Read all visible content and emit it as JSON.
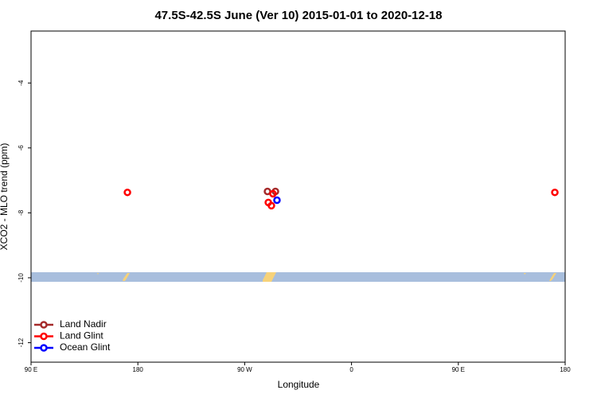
{
  "chart_data": {
    "type": "scatter",
    "title": "47.5S-42.5S June (Ver 10)   2015-01-01 to 2020-12-18",
    "x_label": "Longitude",
    "y_label": "XCO2 - MLO trend (ppm)",
    "xlim": [
      90,
      540
    ],
    "ylim": [
      -12.6,
      -2.4
    ],
    "xticks": [
      {
        "value": 90,
        "label": "90 E"
      },
      180,
      {
        "value": 270,
        "label": "90 W"
      },
      {
        "value": 360,
        "label": "0"
      },
      {
        "value": 450,
        "label": "90 E"
      },
      {
        "value": 540,
        "label": "180"
      }
    ],
    "yticks": [
      -4,
      -6,
      -8,
      -10,
      -12
    ],
    "legend": "bottom-left",
    "series": [
      {
        "name": "Land Nadir",
        "color": "#a52a2a",
        "x": [
          289.2,
          295.9
        ],
        "values": [
          -7.34,
          -7.34
        ]
      },
      {
        "name": "Land Glint",
        "color": "#ff0000",
        "x": [
          171.2,
          531.3,
          293.8,
          289.9,
          292.5
        ],
        "values": [
          -7.37,
          -7.37,
          -7.41,
          -7.68,
          -7.78
        ]
      },
      {
        "name": "Ocean Glint",
        "color": "#0000ff",
        "x": [
          297.2
        ],
        "values": [
          -7.61
        ]
      }
    ]
  }
}
